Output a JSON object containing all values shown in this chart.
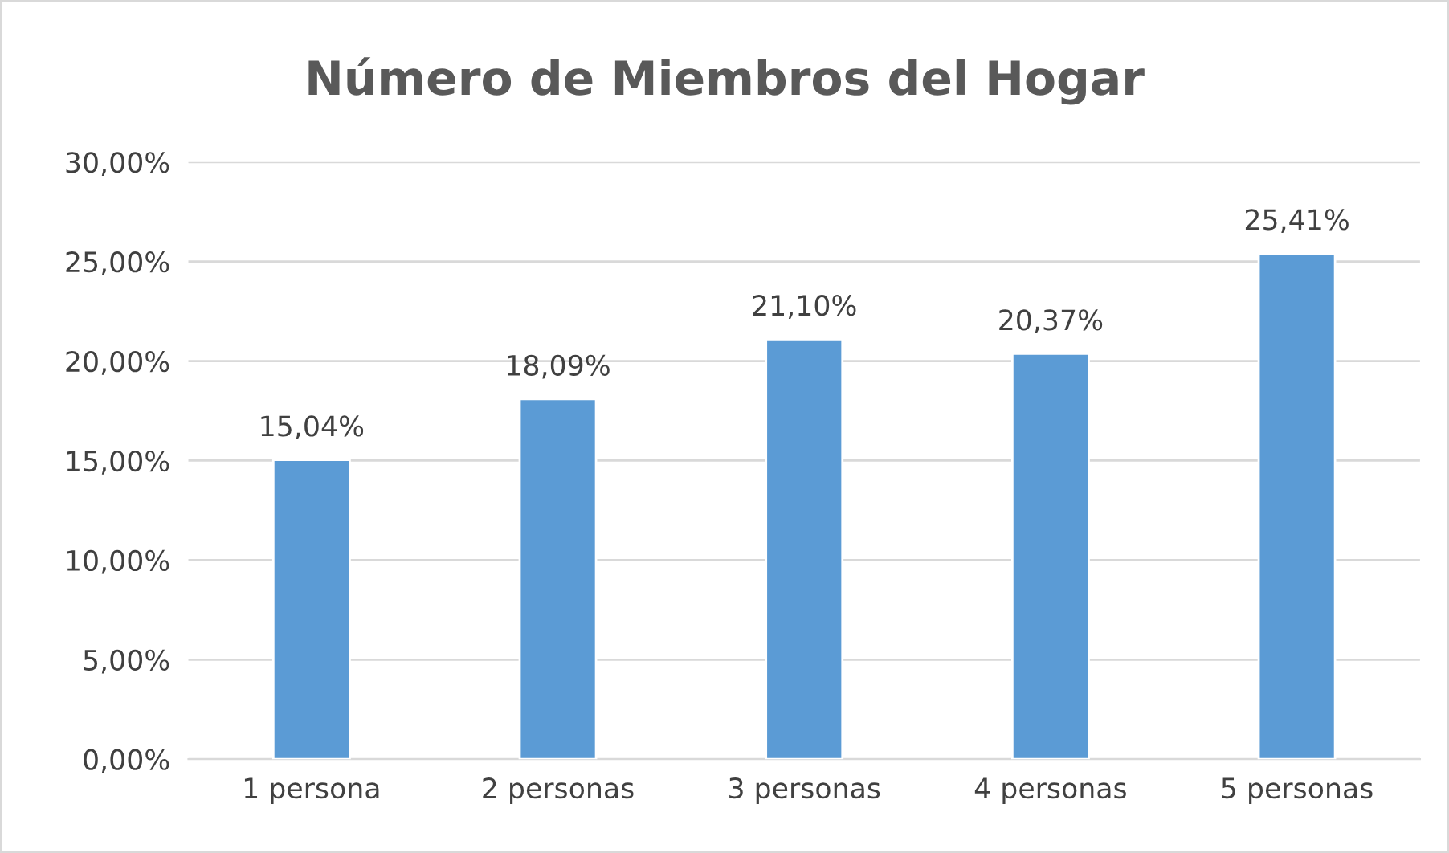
{
  "chart_data": {
    "type": "bar",
    "title": "Número de Miembros del Hogar",
    "categories": [
      "1 persona",
      "2 personas",
      "3 personas",
      "4 personas",
      "5 personas"
    ],
    "values": [
      15.04,
      18.09,
      21.1,
      20.37,
      25.41
    ],
    "value_labels": [
      "15,04%",
      "18,09%",
      "21,10%",
      "20,37%",
      "25,41%"
    ],
    "color": "#5b9bd5",
    "ylim": [
      0,
      30
    ],
    "yticks": [
      {
        "value": 0,
        "label": "0,00%"
      },
      {
        "value": 5,
        "label": "5,00%"
      },
      {
        "value": 10,
        "label": "10,00%"
      },
      {
        "value": 15,
        "label": "15,00%"
      },
      {
        "value": 20,
        "label": "20,00%"
      },
      {
        "value": 25,
        "label": "25,00%"
      },
      {
        "value": 30,
        "label": "30,00%"
      }
    ],
    "grid": "y"
  }
}
